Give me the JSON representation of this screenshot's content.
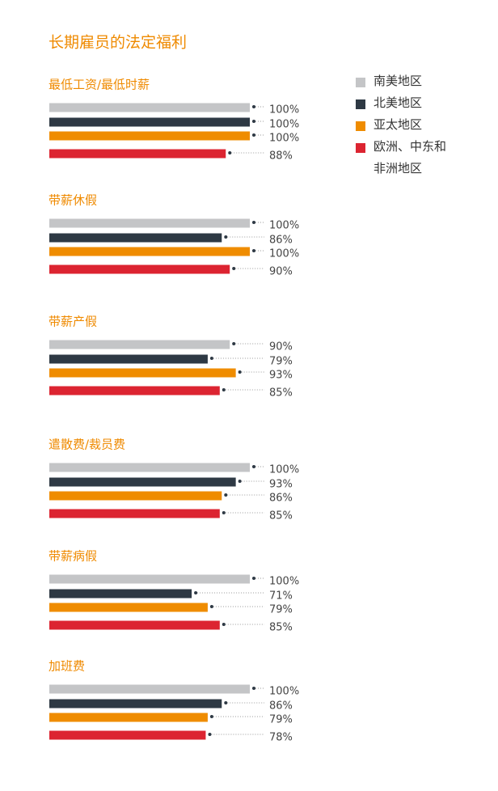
{
  "title": "长期雇员的法定福利",
  "legend": [
    {
      "name": "南美地区",
      "color": "#c4c5c7"
    },
    {
      "name": "北美地区",
      "color": "#2e3944"
    },
    {
      "name": "亚太地区",
      "color": "#ef8c00"
    },
    {
      "name": "欧洲、中东和非洲地区",
      "color": "#dc2431"
    }
  ],
  "chart_data": [
    {
      "type": "bar",
      "orientation": "horizontal",
      "title": "最低工资/最低时薪",
      "xlim": [
        0,
        100
      ],
      "values": [
        100,
        100,
        100,
        88
      ],
      "value_labels": [
        "100%",
        "100%",
        "100%",
        "88%"
      ]
    },
    {
      "type": "bar",
      "orientation": "horizontal",
      "title": "带薪休假",
      "xlim": [
        0,
        100
      ],
      "values": [
        100,
        86,
        100,
        90
      ],
      "value_labels": [
        "100%",
        "86%",
        "100%",
        "90%"
      ]
    },
    {
      "type": "bar",
      "orientation": "horizontal",
      "title": "带薪产假",
      "xlim": [
        0,
        100
      ],
      "values": [
        90,
        79,
        93,
        85
      ],
      "value_labels": [
        "90%",
        "79%",
        "93%",
        "85%"
      ]
    },
    {
      "type": "bar",
      "orientation": "horizontal",
      "title": "遣散费/裁员费",
      "xlim": [
        0,
        100
      ],
      "values": [
        100,
        93,
        86,
        85
      ],
      "value_labels": [
        "100%",
        "93%",
        "86%",
        "85%"
      ]
    },
    {
      "type": "bar",
      "orientation": "horizontal",
      "title": "带薪病假",
      "xlim": [
        0,
        100
      ],
      "values": [
        100,
        71,
        79,
        85
      ],
      "value_labels": [
        "100%",
        "71%",
        "79%",
        "85%"
      ]
    },
    {
      "type": "bar",
      "orientation": "horizontal",
      "title": "加班费",
      "xlim": [
        0,
        100
      ],
      "values": [
        100,
        86,
        79,
        78
      ],
      "value_labels": [
        "100%",
        "86%",
        "79%",
        "78%"
      ]
    }
  ]
}
